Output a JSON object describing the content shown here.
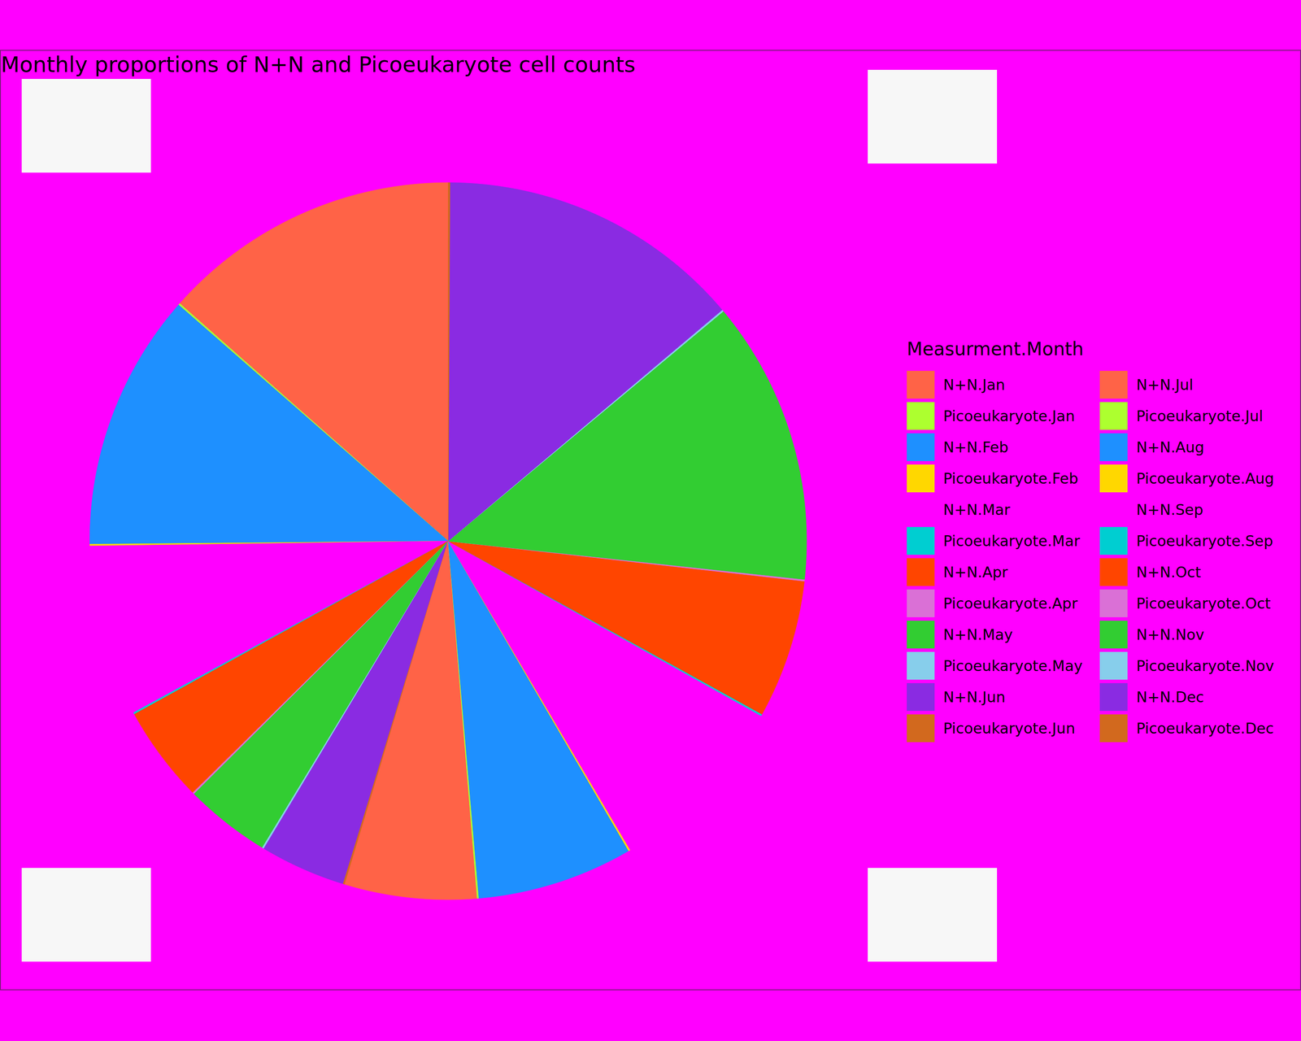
{
  "chart_data": {
    "type": "pie",
    "title": "Monthly proportions of N+N and Picoeukaryote cell counts",
    "legend_title": "Measurment.Month",
    "legend": "right",
    "categories": [
      "N+N.Jan",
      "Picoeukaryote.Jan",
      "N+N.Feb",
      "Picoeukaryote.Feb",
      "N+N.Mar",
      "Picoeukaryote.Mar",
      "N+N.Apr",
      "Picoeukaryote.Apr",
      "N+N.May",
      "Picoeukaryote.May",
      "N+N.Jun",
      "Picoeukaryote.Jun",
      "N+N.Jul",
      "Picoeukaryote.Jul",
      "N+N.Aug",
      "Picoeukaryote.Aug",
      "N+N.Sep",
      "Picoeukaryote.Sep",
      "N+N.Oct",
      "Picoeukaryote.Oct",
      "N+N.Nov",
      "Picoeukaryote.Nov",
      "N+N.Dec",
      "Picoeukaryote.Dec"
    ],
    "values": [
      13.6,
      0.08,
      11.7,
      0.08,
      7.8,
      0.08,
      4.4,
      0.08,
      3.9,
      0.08,
      3.9,
      0.08,
      6.0,
      0.08,
      7.1,
      0.08,
      8.5,
      0.08,
      6.3,
      0.08,
      12.9,
      0.08,
      13.9,
      0.08
    ],
    "colors": [
      "#FF6347",
      "#ADFF2F",
      "#1E90FF",
      "#FFD700",
      "#FF00FF",
      "#00CED1",
      "#FF4500",
      "#DA70D6",
      "#32CD32",
      "#87CEEB",
      "#8A2BE2",
      "#D2691E",
      "#FF6347",
      "#ADFF2F",
      "#1E90FF",
      "#FFD700",
      "#FF00FF",
      "#00CED1",
      "#FF4500",
      "#DA70D6",
      "#32CD32",
      "#87CEEB",
      "#8A2BE2",
      "#D2691E"
    ]
  }
}
